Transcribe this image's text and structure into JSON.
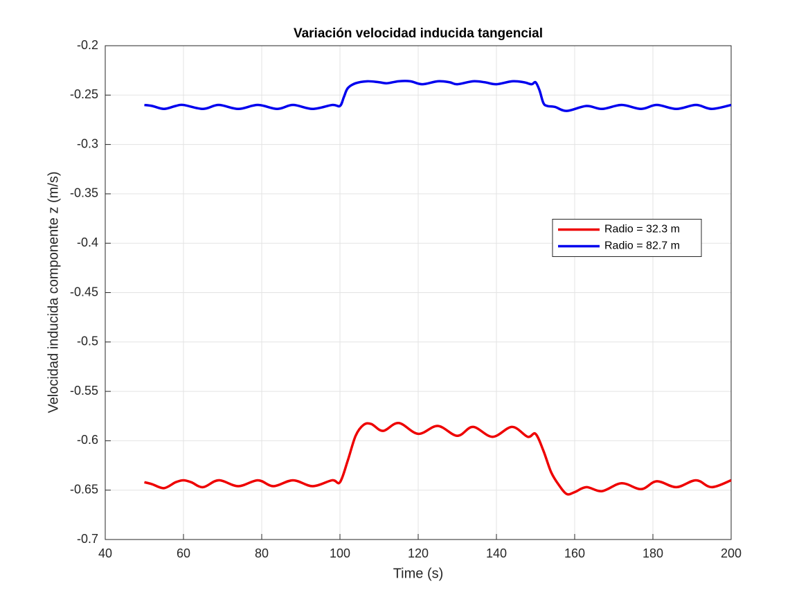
{
  "chart_data": {
    "type": "line",
    "title": "Variación velocidad inducida tangencial",
    "xlabel": "Time (s)",
    "ylabel": "Velocidad inducida componente z (m/s)",
    "xlim": [
      40,
      200
    ],
    "xticks": [
      40,
      60,
      80,
      100,
      120,
      140,
      160,
      180,
      200
    ],
    "ylim": [
      -0.7,
      -0.2
    ],
    "yticks": [
      -0.7,
      -0.65,
      -0.6,
      -0.55,
      -0.5,
      -0.45,
      -0.4,
      -0.35,
      -0.3,
      -0.25,
      -0.2
    ],
    "grid": true,
    "legend": "east",
    "series": [
      {
        "name": "Radio = 32.3 m",
        "color": "#ee0000",
        "x": [
          50,
          52,
          55,
          58,
          60,
          62,
          65,
          69,
          74,
          79,
          83,
          88,
          93,
          98,
          100,
          102,
          104,
          106,
          108,
          111,
          115,
          120,
          125,
          130,
          134,
          139,
          144,
          148,
          150,
          152,
          154,
          156,
          158,
          160,
          163,
          167,
          172,
          177,
          181,
          186,
          191,
          195,
          200
        ],
        "values": [
          -0.642,
          -0.644,
          -0.648,
          -0.642,
          -0.64,
          -0.642,
          -0.647,
          -0.64,
          -0.646,
          -0.64,
          -0.646,
          -0.64,
          -0.646,
          -0.64,
          -0.642,
          -0.62,
          -0.595,
          -0.584,
          -0.583,
          -0.59,
          -0.582,
          -0.593,
          -0.585,
          -0.595,
          -0.586,
          -0.596,
          -0.586,
          -0.596,
          -0.593,
          -0.61,
          -0.632,
          -0.645,
          -0.654,
          -0.652,
          -0.647,
          -0.651,
          -0.643,
          -0.649,
          -0.641,
          -0.647,
          -0.64,
          -0.647,
          -0.64
        ]
      },
      {
        "name": "Radio = 82.7 m",
        "color": "#0000ee",
        "x": [
          50,
          52,
          55,
          58,
          60,
          65,
          69,
          74,
          79,
          84,
          88,
          93,
          98,
          100,
          101,
          102,
          104,
          107,
          110,
          112,
          115,
          118,
          121,
          125,
          128,
          130,
          134,
          137,
          140,
          144,
          147,
          149,
          150,
          151,
          152,
          153,
          155,
          158,
          163,
          167,
          172,
          177,
          181,
          186,
          191,
          195,
          200
        ],
        "values": [
          -0.26,
          -0.261,
          -0.264,
          -0.261,
          -0.26,
          -0.264,
          -0.26,
          -0.264,
          -0.26,
          -0.264,
          -0.26,
          -0.264,
          -0.26,
          -0.261,
          -0.252,
          -0.243,
          -0.238,
          -0.236,
          -0.237,
          -0.238,
          -0.236,
          -0.236,
          -0.239,
          -0.236,
          -0.237,
          -0.239,
          -0.236,
          -0.237,
          -0.239,
          -0.236,
          -0.237,
          -0.239,
          -0.237,
          -0.245,
          -0.258,
          -0.261,
          -0.262,
          -0.266,
          -0.261,
          -0.264,
          -0.26,
          -0.264,
          -0.26,
          -0.264,
          -0.26,
          -0.264,
          -0.26
        ]
      }
    ]
  }
}
